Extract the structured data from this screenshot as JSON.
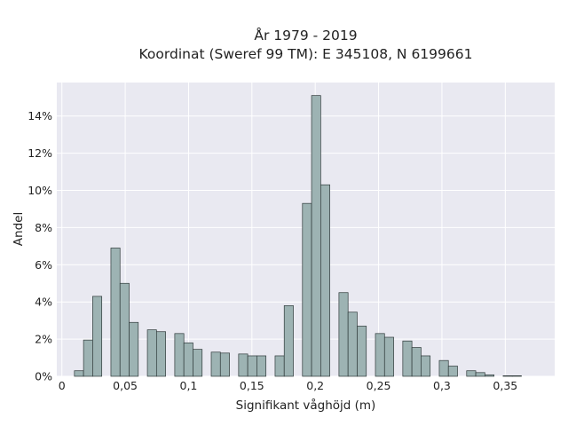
{
  "colors": {
    "plot_background": "#e9e9f1",
    "grid": "#ffffff",
    "bar_fill": "#9db3b3",
    "bar_stroke": "#2f3a3a",
    "text": "#222222"
  },
  "chart_data": {
    "type": "bar",
    "title_line1": "År 1979 - 2019",
    "title_line2": "Koordinat (Sweref 99 TM): E 345108, N 6199661",
    "xlabel": "Signifikant våghöjd (m)",
    "ylabel": "Andel",
    "xlim": [
      -0.004,
      0.389
    ],
    "ylim": [
      0,
      15.8
    ],
    "grid": true,
    "x_ticks": [
      {
        "value": 0,
        "label": "0"
      },
      {
        "value": 0.05,
        "label": "0,05"
      },
      {
        "value": 0.1,
        "label": "0,1"
      },
      {
        "value": 0.15,
        "label": "0,15"
      },
      {
        "value": 0.2,
        "label": "0,2"
      },
      {
        "value": 0.25,
        "label": "0,25"
      },
      {
        "value": 0.3,
        "label": "0,3"
      },
      {
        "value": 0.35,
        "label": "0,35"
      }
    ],
    "y_ticks": [
      {
        "value": 0,
        "label": "0%"
      },
      {
        "value": 2,
        "label": "2%"
      },
      {
        "value": 4,
        "label": "4%"
      },
      {
        "value": 6,
        "label": "6%"
      },
      {
        "value": 8,
        "label": "8%"
      },
      {
        "value": 10,
        "label": "10%"
      },
      {
        "value": 12,
        "label": "12%"
      },
      {
        "value": 14,
        "label": "14%"
      }
    ],
    "bin_width": 0.0072,
    "bars": [
      {
        "x": 0.0135,
        "y": 0.3
      },
      {
        "x": 0.0207,
        "y": 1.95
      },
      {
        "x": 0.0279,
        "y": 4.3
      },
      {
        "x": 0.0423,
        "y": 6.9
      },
      {
        "x": 0.0495,
        "y": 5.0
      },
      {
        "x": 0.0567,
        "y": 2.9
      },
      {
        "x": 0.0711,
        "y": 2.5
      },
      {
        "x": 0.0783,
        "y": 2.4
      },
      {
        "x": 0.0927,
        "y": 2.3
      },
      {
        "x": 0.0999,
        "y": 1.8
      },
      {
        "x": 0.1071,
        "y": 1.45
      },
      {
        "x": 0.1215,
        "y": 1.3
      },
      {
        "x": 0.1287,
        "y": 1.25
      },
      {
        "x": 0.1431,
        "y": 1.2
      },
      {
        "x": 0.1503,
        "y": 1.1
      },
      {
        "x": 0.1575,
        "y": 1.1
      },
      {
        "x": 0.1719,
        "y": 1.1
      },
      {
        "x": 0.1791,
        "y": 3.8
      },
      {
        "x": 0.1935,
        "y": 9.3
      },
      {
        "x": 0.2007,
        "y": 15.1
      },
      {
        "x": 0.2079,
        "y": 10.3
      },
      {
        "x": 0.2223,
        "y": 4.5
      },
      {
        "x": 0.2295,
        "y": 3.45
      },
      {
        "x": 0.2367,
        "y": 2.7
      },
      {
        "x": 0.2511,
        "y": 2.3
      },
      {
        "x": 0.2583,
        "y": 2.1
      },
      {
        "x": 0.2727,
        "y": 1.9
      },
      {
        "x": 0.2799,
        "y": 1.55
      },
      {
        "x": 0.2871,
        "y": 1.1
      },
      {
        "x": 0.3015,
        "y": 0.85
      },
      {
        "x": 0.3087,
        "y": 0.55
      },
      {
        "x": 0.3231,
        "y": 0.3
      },
      {
        "x": 0.3303,
        "y": 0.2
      },
      {
        "x": 0.3375,
        "y": 0.08
      },
      {
        "x": 0.3519,
        "y": 0.03
      },
      {
        "x": 0.3591,
        "y": 0.03
      }
    ]
  }
}
